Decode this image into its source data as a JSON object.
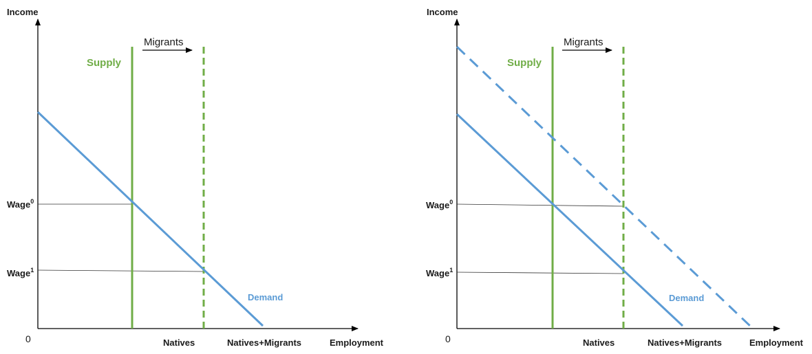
{
  "colors": {
    "supply": "#70ad47",
    "demand": "#5b9bd5",
    "axis": "#000000",
    "wage_line": "#333333"
  },
  "panels": [
    {
      "y_axis_label": "Income",
      "x_axis_label": "Employment",
      "origin_label": "0",
      "supply_label": "Supply",
      "demand_label": "Demand",
      "shift_label": "Migrants",
      "x_ticks": [
        "Natives",
        "Natives+Migrants"
      ],
      "wage0": {
        "base": "Wage",
        "sup": "0"
      },
      "wage1": {
        "base": "Wage",
        "sup": "1"
      },
      "shifted_demand": false
    },
    {
      "y_axis_label": "Income",
      "x_axis_label": "Employment",
      "origin_label": "0",
      "supply_label": "Supply",
      "demand_label": "Demand",
      "shift_label": "Migrants",
      "x_ticks": [
        "Natives",
        "Natives+Migrants"
      ],
      "wage0": {
        "base": "Wage",
        "sup": "0"
      },
      "wage1": {
        "base": "Wage",
        "sup": "1"
      },
      "shifted_demand": true
    }
  ]
}
